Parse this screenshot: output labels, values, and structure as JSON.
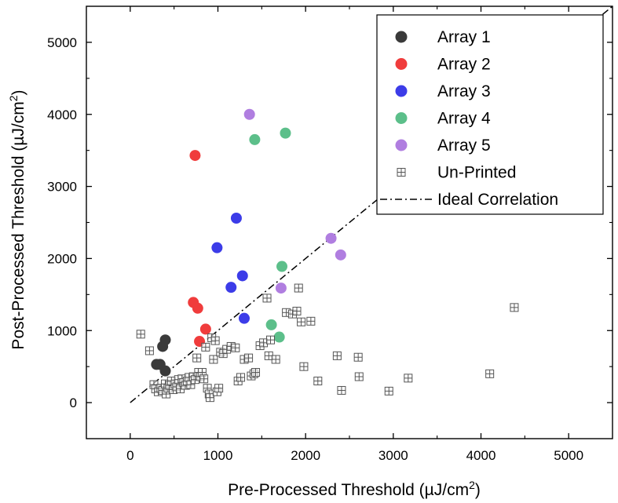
{
  "chart_data": {
    "type": "scatter",
    "title": "",
    "xlabel": "Pre-Processed Threshold (µJ/cm",
    "xlabel_sup": "2",
    "xlabel_end": ")",
    "ylabel": "Post-Processed Threshold (µJ/cm",
    "ylabel_sup": "2",
    "ylabel_end": ")",
    "xlim": [
      -500,
      5500
    ],
    "ylim": [
      -500,
      5500
    ],
    "x_ticks": [
      "0",
      "1000",
      "2000",
      "3000",
      "4000",
      "5000"
    ],
    "y_ticks": [
      "0",
      "1000",
      "2000",
      "3000",
      "4000",
      "5000"
    ],
    "grid": false,
    "legend_position": "top-right",
    "series": [
      {
        "name": "Array 1",
        "color": "#3a3a3a",
        "marker": "circle",
        "points": [
          [
            300,
            530
          ],
          [
            340,
            530
          ],
          [
            370,
            780
          ],
          [
            400,
            870
          ],
          [
            400,
            440
          ]
        ]
      },
      {
        "name": "Array 2",
        "color": "#f03c3c",
        "marker": "circle",
        "points": [
          [
            740,
            3430
          ],
          [
            720,
            1390
          ],
          [
            770,
            1310
          ],
          [
            860,
            1020
          ],
          [
            790,
            850
          ]
        ]
      },
      {
        "name": "Array 3",
        "color": "#3c3ce8",
        "marker": "circle",
        "points": [
          [
            1210,
            2560
          ],
          [
            990,
            2150
          ],
          [
            1280,
            1760
          ],
          [
            1150,
            1600
          ],
          [
            1300,
            1170
          ]
        ]
      },
      {
        "name": "Array 4",
        "color": "#5cbf8a",
        "marker": "circle",
        "points": [
          [
            1420,
            3650
          ],
          [
            1770,
            3740
          ],
          [
            1730,
            1890
          ],
          [
            1610,
            1080
          ],
          [
            1700,
            910
          ]
        ]
      },
      {
        "name": "Array 5",
        "color": "#b07ee0",
        "marker": "circle",
        "points": [
          [
            1360,
            4000
          ],
          [
            2290,
            2280
          ],
          [
            2400,
            2050
          ],
          [
            1720,
            1590
          ]
        ]
      },
      {
        "name": "Un-Printed",
        "color": "#555555",
        "marker": "square-cross",
        "points": [
          [
            120,
            950
          ],
          [
            220,
            720
          ],
          [
            270,
            250
          ],
          [
            290,
            190
          ],
          [
            320,
            150
          ],
          [
            350,
            200
          ],
          [
            370,
            170
          ],
          [
            400,
            260
          ],
          [
            410,
            120
          ],
          [
            430,
            200
          ],
          [
            450,
            240
          ],
          [
            470,
            300
          ],
          [
            490,
            180
          ],
          [
            510,
            260
          ],
          [
            530,
            220
          ],
          [
            550,
            320
          ],
          [
            570,
            190
          ],
          [
            590,
            330
          ],
          [
            610,
            280
          ],
          [
            630,
            240
          ],
          [
            650,
            300
          ],
          [
            670,
            350
          ],
          [
            690,
            250
          ],
          [
            720,
            360
          ],
          [
            740,
            320
          ],
          [
            760,
            620
          ],
          [
            780,
            420
          ],
          [
            800,
            360
          ],
          [
            820,
            420
          ],
          [
            840,
            330
          ],
          [
            860,
            770
          ],
          [
            880,
            200
          ],
          [
            900,
            120
          ],
          [
            910,
            70
          ],
          [
            930,
            900
          ],
          [
            950,
            600
          ],
          [
            970,
            860
          ],
          [
            990,
            150
          ],
          [
            1010,
            200
          ],
          [
            1030,
            700
          ],
          [
            1060,
            680
          ],
          [
            1100,
            740
          ],
          [
            1150,
            780
          ],
          [
            1200,
            760
          ],
          [
            1230,
            300
          ],
          [
            1260,
            350
          ],
          [
            1300,
            600
          ],
          [
            1350,
            620
          ],
          [
            1380,
            370
          ],
          [
            1410,
            400
          ],
          [
            1430,
            420
          ],
          [
            1480,
            790
          ],
          [
            1520,
            830
          ],
          [
            1560,
            1450
          ],
          [
            1580,
            650
          ],
          [
            1600,
            870
          ],
          [
            1660,
            600
          ],
          [
            1780,
            1250
          ],
          [
            1850,
            1230
          ],
          [
            1900,
            1270
          ],
          [
            1920,
            1590
          ],
          [
            1950,
            1120
          ],
          [
            1980,
            500
          ],
          [
            2060,
            1130
          ],
          [
            2140,
            300
          ],
          [
            2360,
            650
          ],
          [
            2410,
            170
          ],
          [
            2600,
            630
          ],
          [
            2610,
            360
          ],
          [
            2950,
            160
          ],
          [
            3170,
            340
          ],
          [
            4100,
            400
          ],
          [
            4380,
            1320
          ]
        ]
      }
    ],
    "reference_line": {
      "name": "Ideal Correlation",
      "style": "dash-dot",
      "color": "#000000",
      "x": [
        0,
        5500
      ],
      "y": [
        0,
        5500
      ]
    }
  }
}
